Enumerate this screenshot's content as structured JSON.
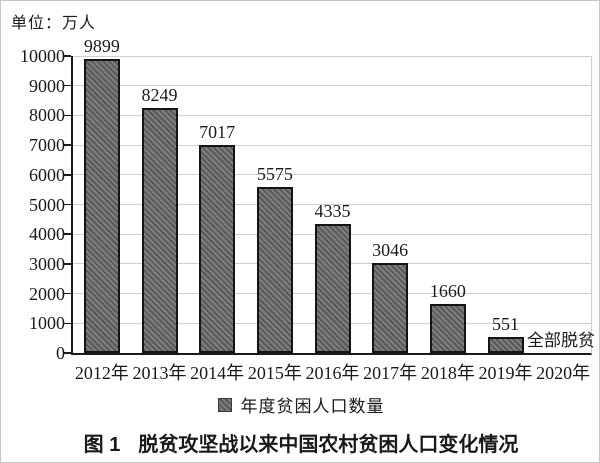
{
  "chart": {
    "unit_label": "单位：万人",
    "legend_label": "年度贫困人口数量",
    "annotation_label": "全部脱贫"
  },
  "caption": {
    "figure_no": "图 1",
    "title": "脱贫攻坚战以来中国农村贫困人口变化情况"
  },
  "chart_data": {
    "type": "bar",
    "title": "图1 脱贫攻坚战以来中国农村贫困人口变化情况",
    "unit": "单位：万人",
    "categories": [
      "2012年",
      "2013年",
      "2014年",
      "2015年",
      "2016年",
      "2017年",
      "2018年",
      "2019年",
      "2020年"
    ],
    "values": [
      9899,
      8249,
      7017,
      5575,
      4335,
      3046,
      1660,
      551,
      null
    ],
    "annotations": [
      {
        "category": "2020年",
        "text": "全部脱贫"
      }
    ],
    "legend_entries": [
      "年度贫困人口数量"
    ],
    "legend_position": "bottom",
    "xlabel": "",
    "ylabel": "单位：万人",
    "ylim": [
      0,
      10000
    ],
    "ytick_step": 1000,
    "grid": true,
    "bar_fill_color": "#666666",
    "bar_hatch": "diagonal",
    "bar_border_color": "#141414",
    "gridline_color": "#cfcfcf"
  }
}
